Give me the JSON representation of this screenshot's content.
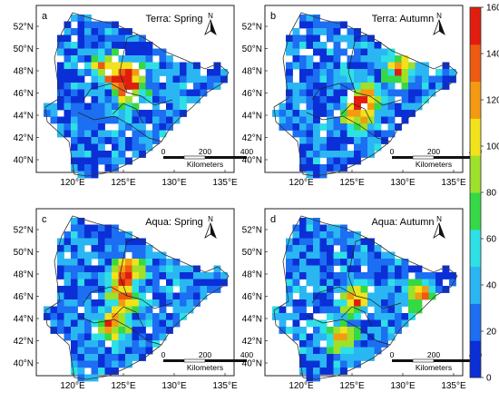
{
  "figure": {
    "colorbar": {
      "ticks": [
        "0",
        "20",
        "40",
        "60",
        "80",
        "100",
        "120",
        "140",
        "160"
      ],
      "colors": [
        "#0a2fd6",
        "#1c6ef2",
        "#2ab6f3",
        "#2de0e6",
        "#35d845",
        "#9fe02b",
        "#f1e21c",
        "#f39a12",
        "#ee5a10",
        "#e11d10"
      ]
    },
    "map": {
      "lat_labels": [
        "52°N",
        "50°N",
        "48°N",
        "46°N",
        "44°N",
        "42°N",
        "40°N"
      ],
      "lon_labels": [
        "120°E",
        "125°E",
        "130°E",
        "135°E"
      ],
      "scalebar": {
        "ticks": [
          "0",
          "200",
          "400"
        ],
        "unit": "Kilometers"
      },
      "north_label": "N"
    },
    "panels": [
      {
        "letter": "a",
        "title": "Terra: Spring"
      },
      {
        "letter": "b",
        "title": "Terra: Autumn"
      },
      {
        "letter": "c",
        "title": "Aqua: Spring"
      },
      {
        "letter": "d",
        "title": "Aqua: Autumn"
      }
    ]
  }
}
